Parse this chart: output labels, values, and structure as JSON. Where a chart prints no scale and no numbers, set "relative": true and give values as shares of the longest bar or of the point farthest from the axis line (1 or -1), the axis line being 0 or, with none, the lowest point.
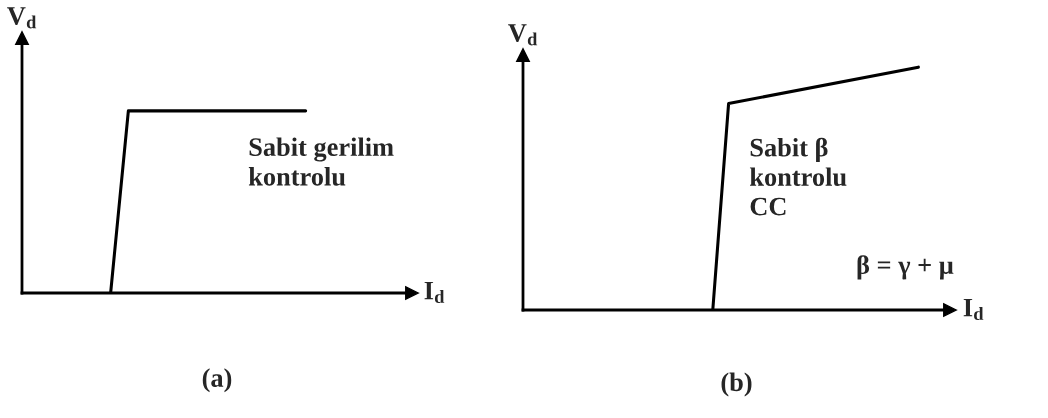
{
  "chart_data": [
    {
      "type": "line",
      "relative": true,
      "title": "(a)",
      "xlabel": "I$_{d}$",
      "ylabel": "V$_{d}$",
      "categories": [
        null,
        null,
        null,
        null,
        null,
        null,
        null,
        null,
        null,
        null,
        null,
        null,
        null,
        null,
        null,
        null,
        null,
        null,
        null,
        null,
        null,
        null
      ],
      "series": [
        {
          "color": "#000000",
          "values": [
            null,
            null,
            null,
            null,
            null,
            0,
            1,
            null,
            null,
            null,
            null,
            null,
            null,
            null,
            null,
            null,
            1,
            null,
            null,
            null,
            null,
            null
          ]
        }
      ],
      "annotations": [
        "Sabit gerilim\nkontrolu"
      ]
    },
    {
      "type": "line",
      "relative": true,
      "title": "(b)",
      "xlabel": "I$_{d}$",
      "ylabel": "V$_{d}$",
      "categories": [
        null,
        null,
        null,
        null,
        null,
        null,
        null,
        null,
        null,
        null,
        null,
        null,
        null,
        null,
        null,
        null,
        null,
        null,
        null,
        null,
        null,
        null,
        null,
        null,
        null,
        null,
        null
      ],
      "series": [
        {
          "color": "#000000",
          "values": [
            null,
            null,
            null,
            null,
            null,
            null,
            null,
            null,
            null,
            null,
            null,
            null,
            0,
            0.85,
            null,
            null,
            null,
            null,
            null,
            null,
            null,
            null,
            null,
            null,
            null,
            1,
            null
          ]
        }
      ],
      "annotations": [
        "Sabit β\nkontrolu\nCC",
        "β = γ + μ"
      ]
    }
  ]
}
